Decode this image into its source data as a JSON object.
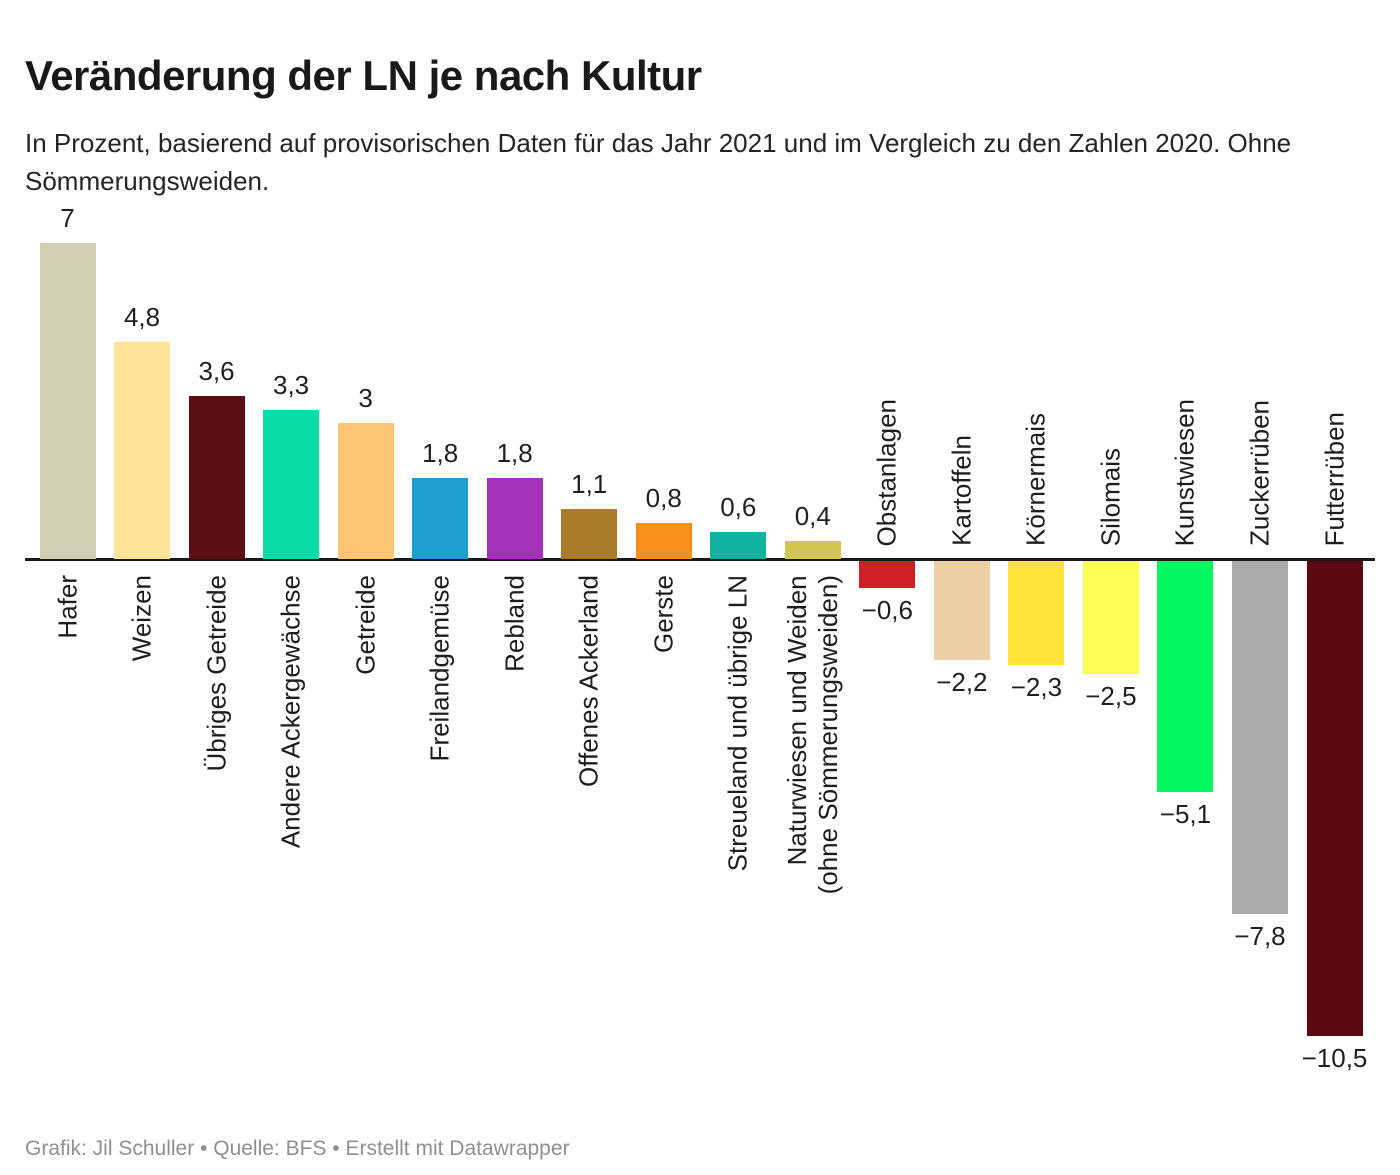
{
  "header": {
    "title": "Veränderung der LN je nach Kultur",
    "subtitle": "In Prozent, basierend auf provisorischen Daten für das Jahr 2021 und im Vergleich zu den Zahlen 2020. Ohne Sömmerungsweiden."
  },
  "footer": {
    "credit": "Grafik: Jil Schuller • Quelle: BFS • Erstellt mit Datawrapper"
  },
  "chart_data": {
    "type": "bar",
    "orientation": "vertical-columns",
    "unit": "percent",
    "title": "Veränderung der LN je nach Kultur",
    "xlabel": "",
    "ylabel": "",
    "ylim": [
      -10.5,
      7
    ],
    "baseline": 0,
    "grid": false,
    "legend": null,
    "decimal_style": "comma",
    "categories": [
      "Hafer",
      "Weizen",
      "Übriges Getreide",
      "Andere Ackergewächse",
      "Getreide",
      "Freilandgemüse",
      "Rebland",
      "Offenes Ackerland",
      "Gerste",
      "Streueland und übrige LN",
      "Naturwiesen und Weiden\n(ohne Sömmerungsweiden)",
      "Obstanlagen",
      "Kartoffeln",
      "Körnermais",
      "Silomais",
      "Kunstwiesen",
      "Zuckerrüben",
      "Futterrüben"
    ],
    "values": [
      7,
      4.8,
      3.6,
      3.3,
      3,
      1.8,
      1.8,
      1.1,
      0.8,
      0.6,
      0.4,
      -0.6,
      -2.2,
      -2.3,
      -2.5,
      -5.1,
      -7.8,
      -10.5
    ],
    "value_labels": [
      "7",
      "4,8",
      "3,6",
      "3,3",
      "3",
      "1,8",
      "1,8",
      "1,1",
      "0,8",
      "0,6",
      "0,4",
      "−0,6",
      "−2,2",
      "−2,3",
      "−2,5",
      "−5,1",
      "−7,8",
      "−10,5"
    ],
    "colors": [
      "#d0cfb3",
      "#fee39a",
      "#5b0e14",
      "#0bdba4",
      "#fcc674",
      "#209fce",
      "#a233b6",
      "#aa7b2c",
      "#f88f1d",
      "#10b49e",
      "#d2c653",
      "#cf2027",
      "#ead0a4",
      "#ffe23a",
      "#feff56",
      "#03f763",
      "#ababab",
      "#5c0a12"
    ]
  }
}
